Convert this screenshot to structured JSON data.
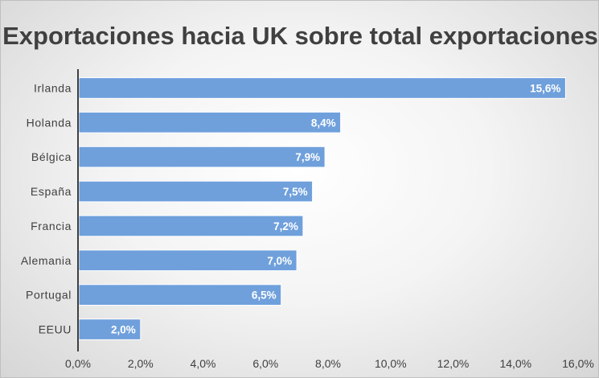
{
  "chart_data": {
    "type": "bar",
    "orientation": "horizontal",
    "title": "Exportaciones hacia UK sobre total exportaciones",
    "categories": [
      "Irlanda",
      "Holanda",
      "Bélgica",
      "España",
      "Francia",
      "Alemania",
      "Portugal",
      "EEUU"
    ],
    "values": [
      15.6,
      8.4,
      7.9,
      7.5,
      7.2,
      7.0,
      6.5,
      2.0
    ],
    "data_labels": [
      "15,6%",
      "8,4%",
      "7,9%",
      "7,5%",
      "7,2%",
      "7,0%",
      "6,5%",
      "2,0%"
    ],
    "xlim": [
      0,
      16
    ],
    "x_ticks": [
      0,
      2,
      4,
      6,
      8,
      10,
      12,
      14,
      16
    ],
    "x_tick_labels": [
      "0,0%",
      "2,0%",
      "4,0%",
      "6,0%",
      "8,0%",
      "10,0%",
      "12,0%",
      "14,0%",
      "16,0%"
    ],
    "xlabel": "",
    "ylabel": "",
    "grid": false,
    "legend": "none",
    "bar_color": "#6fa0dc",
    "bar_border_color": "#ffffff",
    "axis_color": "#404040",
    "text_color": "#404040",
    "data_label_color": "#ffffff"
  }
}
